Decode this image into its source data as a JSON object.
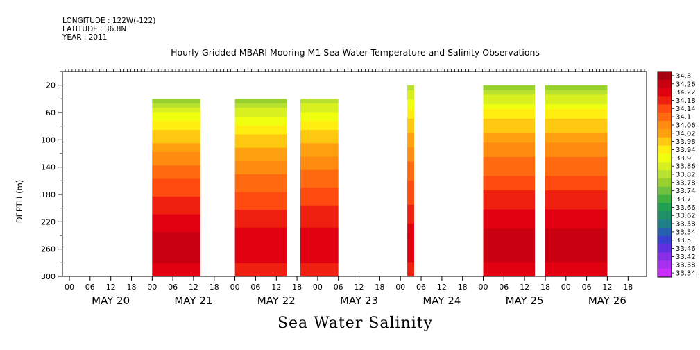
{
  "header": {
    "longitude": "LONGITUDE : 122W(-122)",
    "latitude": "LATITUDE : 36.8N",
    "year": "YEAR : 2011"
  },
  "footer_title": "Sea Water Salinity",
  "chart_data": {
    "type": "heatmap",
    "title": "Hourly Gridded MBARI Mooring M1 Sea Water Temperature and Salinity Observations",
    "xlabel": "",
    "ylabel": "DEPTH (m)",
    "ylim": [
      300,
      0
    ],
    "y_ticks": [
      20,
      60,
      100,
      140,
      180,
      220,
      260,
      300
    ],
    "x_day_labels": [
      "MAY 20",
      "MAY 21",
      "MAY 22",
      "MAY 23",
      "MAY 24",
      "MAY 25",
      "MAY 26"
    ],
    "x_hour_labels": [
      "00",
      "06",
      "12",
      "18"
    ],
    "colorbar_levels": [
      "34.3",
      "34.26",
      "34.22",
      "34.18",
      "34.14",
      "34.1",
      "34.06",
      "34.02",
      "33.98",
      "33.94",
      "33.9",
      "33.86",
      "33.82",
      "33.78",
      "33.74",
      "33.7",
      "33.66",
      "33.62",
      "33.58",
      "33.54",
      "33.5",
      "33.46",
      "33.42",
      "33.38",
      "33.34"
    ],
    "colorbar_colors": [
      "#a50010",
      "#c80010",
      "#e00010",
      "#f02010",
      "#ff4a10",
      "#ff6a10",
      "#ff8c10",
      "#ffa010",
      "#ffc810",
      "#ffee10",
      "#f0ff10",
      "#d8f020",
      "#b8e030",
      "#98d030",
      "#70c040",
      "#40b040",
      "#20a050",
      "#209068",
      "#208088",
      "#2860b0",
      "#3840d0",
      "#6030e0",
      "#8830e8",
      "#a830f0",
      "#c830f8"
    ],
    "data_blocks": [
      {
        "start": "MAY 21 00",
        "end": "MAY 21 14",
        "top_depth": 40,
        "max_salinity_depth": 260,
        "min_salinity": 33.7,
        "max_salinity": 34.26
      },
      {
        "start": "MAY 22 00",
        "end": "MAY 22 15",
        "top_depth": 40,
        "max_salinity_depth": 260,
        "min_salinity": 33.7,
        "max_salinity": 34.22
      },
      {
        "start": "MAY 22 19",
        "end": "MAY 23 06",
        "top_depth": 40,
        "max_salinity_depth": 260,
        "min_salinity": 33.74,
        "max_salinity": 34.22
      },
      {
        "start": "MAY 24 02",
        "end": "MAY 24 04",
        "top_depth": 20,
        "max_salinity_depth": 260,
        "min_salinity": 33.74,
        "max_salinity": 34.22
      },
      {
        "start": "MAY 25 00",
        "end": "MAY 25 15",
        "top_depth": 20,
        "max_salinity_depth": 260,
        "min_salinity": 33.7,
        "max_salinity": 34.26
      },
      {
        "start": "MAY 25 18",
        "end": "MAY 26 12",
        "top_depth": 20,
        "max_salinity_depth": 260,
        "min_salinity": 33.7,
        "max_salinity": 34.26
      }
    ]
  }
}
